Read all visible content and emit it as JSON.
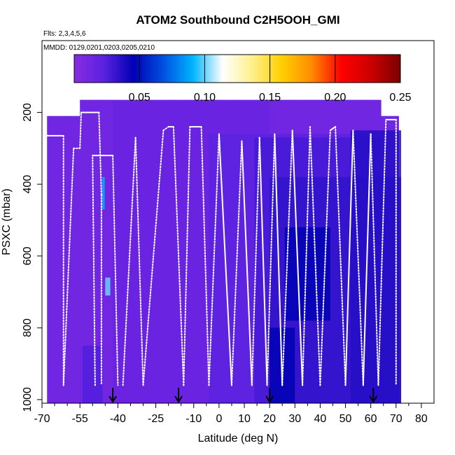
{
  "chart_data": {
    "type": "heatmap",
    "title": "ATOM2 Southbound C2H5OOH_GMI",
    "flights_label": "Flts: 2,3,4,5,6",
    "mmdd_label": "MMDD: 0129,0201,0203,0205,0210",
    "xlabel": "Latitude (deg N)",
    "ylabel": "PSXC (mbar)",
    "xlim": [
      -70,
      85
    ],
    "ylim": [
      1010,
      0
    ],
    "x_ticks": [
      -70,
      -55,
      -40,
      -25,
      -10,
      0,
      10,
      20,
      30,
      40,
      50,
      60,
      70,
      80
    ],
    "x_tick_labels": [
      "-70",
      "-55",
      "-40",
      "-25",
      "-10",
      "0",
      "10",
      "20",
      "30",
      "40",
      "50",
      "60",
      "70",
      "80"
    ],
    "y_ticks": [
      200,
      400,
      600,
      800,
      1000
    ],
    "y_tick_labels": [
      "200",
      "400",
      "600",
      "800",
      "1000"
    ],
    "colorbar": {
      "min": 0,
      "max": 0.25,
      "ticks": [
        0.05,
        0.1,
        0.15,
        0.2,
        0.25
      ],
      "tick_labels": [
        "0.05",
        "0.10",
        "0.15",
        "0.20",
        "0.25"
      ],
      "colors": [
        "#8a2be2",
        "#5a22e0",
        "#0000b4",
        "#0050e0",
        "#00b4ff",
        "#ffffff",
        "#fff08c",
        "#ffd000",
        "#ff8c00",
        "#ff0000",
        "#cc0000",
        "#7a0000"
      ]
    },
    "background_value": 0.012,
    "regions": [
      {
        "lat": [
          -42,
          20
        ],
        "p": [
          170,
          1010
        ],
        "v": 0.016
      },
      {
        "lat": [
          -4,
          58
        ],
        "p": [
          260,
          1010
        ],
        "v": 0.022
      },
      {
        "lat": [
          14,
          64
        ],
        "p": [
          270,
          1010
        ],
        "v": 0.028
      },
      {
        "lat": [
          20,
          72
        ],
        "p": [
          380,
          1010
        ],
        "v": 0.033
      },
      {
        "lat": [
          26,
          44
        ],
        "p": [
          520,
          780
        ],
        "v": 0.045
      },
      {
        "lat": [
          20,
          30
        ],
        "p": [
          800,
          1010
        ],
        "v": 0.045
      },
      {
        "lat": [
          52,
          72
        ],
        "p": [
          250,
          1010
        ],
        "v": 0.036
      },
      {
        "lat": [
          -54,
          -46
        ],
        "p": [
          850,
          1010
        ],
        "v": 0.025
      },
      {
        "lat": [
          -46.2,
          -45.2
        ],
        "p": [
          380,
          470
        ],
        "v": 0.09
      },
      {
        "lat": [
          -45,
          -43
        ],
        "p": [
          660,
          710
        ],
        "v": 0.1
      }
    ],
    "flight_profiles": [
      {
        "lat": [
          -68.8,
          -68.8,
          -68,
          -61.5,
          -61.5
        ],
        "p": [
          310,
          250,
          265,
          265,
          960
        ],
        "dotted": [
          1,
          1,
          0,
          1
        ]
      },
      {
        "lat": [
          -61.5,
          -57.5,
          -55,
          -54.5,
          -47.5,
          -46.5,
          -46.5
        ],
        "p": [
          960,
          300,
          300,
          200,
          200,
          430,
          960
        ],
        "dotted": [
          1,
          1,
          1,
          0,
          1,
          1
        ]
      },
      {
        "lat": [
          -49,
          -50,
          -49,
          -45,
          -42,
          -40
        ],
        "p": [
          960,
          320,
          320,
          320,
          320,
          960
        ],
        "dotted": [
          1,
          0,
          0,
          0,
          1
        ]
      },
      {
        "lat": [
          -38,
          -33,
          -30,
          -22,
          -20,
          -18,
          -14,
          -11.5,
          -7,
          -4
        ],
        "p": [
          960,
          270,
          960,
          250,
          240,
          240,
          960,
          240,
          240,
          960
        ],
        "dotted": [
          1,
          1,
          1,
          1,
          0,
          1,
          1,
          0,
          1
        ]
      },
      {
        "lat": [
          -4,
          0,
          5,
          9,
          13,
          16,
          19,
          22,
          25,
          29,
          33,
          36,
          40,
          44,
          46,
          50,
          53,
          57,
          60,
          63,
          66,
          70,
          70
        ],
        "p": [
          960,
          260,
          960,
          280,
          960,
          270,
          960,
          260,
          960,
          250,
          960,
          240,
          960,
          250,
          240,
          960,
          250,
          960,
          260,
          960,
          220,
          220,
          960
        ],
        "dotted": [
          1,
          0,
          1,
          0,
          1,
          0,
          1,
          0,
          1,
          0,
          1,
          1,
          1,
          0,
          1,
          0,
          1,
          0,
          1,
          1,
          0,
          1
        ]
      }
    ],
    "arrows_lat": [
      -42,
      -16,
      20,
      61
    ]
  }
}
